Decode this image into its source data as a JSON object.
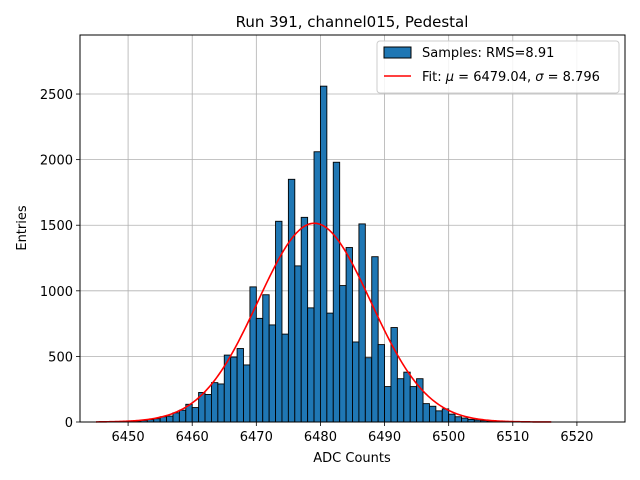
{
  "chart_data": {
    "type": "bar",
    "title": "Run 391, channel015, Pedestal",
    "xlabel": "ADC Counts",
    "ylabel": "Entries",
    "xlim": [
      6442.5,
      6527.5
    ],
    "ylim": [
      0,
      2950
    ],
    "xticks": [
      6450,
      6460,
      6470,
      6480,
      6490,
      6500,
      6510,
      6520
    ],
    "yticks": [
      0,
      500,
      1000,
      1500,
      2000,
      2500
    ],
    "grid": true,
    "legend_position": "top-right",
    "bar_color": "#1f77b4",
    "fit_color": "#ff0000",
    "histogram": {
      "name": "Samples: RMS=8.91",
      "bin_width": 1,
      "bin_starts": [
        6450,
        6451,
        6452,
        6453,
        6454,
        6455,
        6456,
        6457,
        6458,
        6459,
        6460,
        6461,
        6462,
        6463,
        6464,
        6465,
        6466,
        6467,
        6468,
        6469,
        6470,
        6471,
        6472,
        6473,
        6474,
        6475,
        6476,
        6477,
        6478,
        6479,
        6480,
        6481,
        6482,
        6483,
        6484,
        6485,
        6486,
        6487,
        6488,
        6489,
        6490,
        6491,
        6492,
        6493,
        6494,
        6495,
        6496,
        6497,
        6498,
        6499,
        6500,
        6501,
        6502,
        6503,
        6504,
        6505,
        6506,
        6507
      ],
      "counts": [
        5,
        8,
        12,
        18,
        25,
        40,
        45,
        70,
        90,
        135,
        110,
        225,
        210,
        300,
        290,
        510,
        495,
        560,
        435,
        1030,
        790,
        970,
        740,
        1530,
        670,
        1850,
        1190,
        1560,
        870,
        2060,
        2560,
        830,
        1980,
        1040,
        1330,
        610,
        1510,
        490,
        1260,
        590,
        270,
        720,
        330,
        380,
        270,
        330,
        140,
        120,
        85,
        100,
        60,
        40,
        30,
        20,
        15,
        10,
        8,
        5
      ]
    },
    "fit": {
      "name": "Fit: μ = 6479.04, σ = 8.796",
      "legend_prefix": "Fit: ",
      "mu_symbol": "μ",
      "legend_mid": " = 6479.04, ",
      "sigma_symbol": "σ",
      "legend_suffix": " = 8.796",
      "mu": 6479.04,
      "sigma": 8.796,
      "amplitude": 1515,
      "x_range": [
        6445,
        6516
      ]
    }
  }
}
